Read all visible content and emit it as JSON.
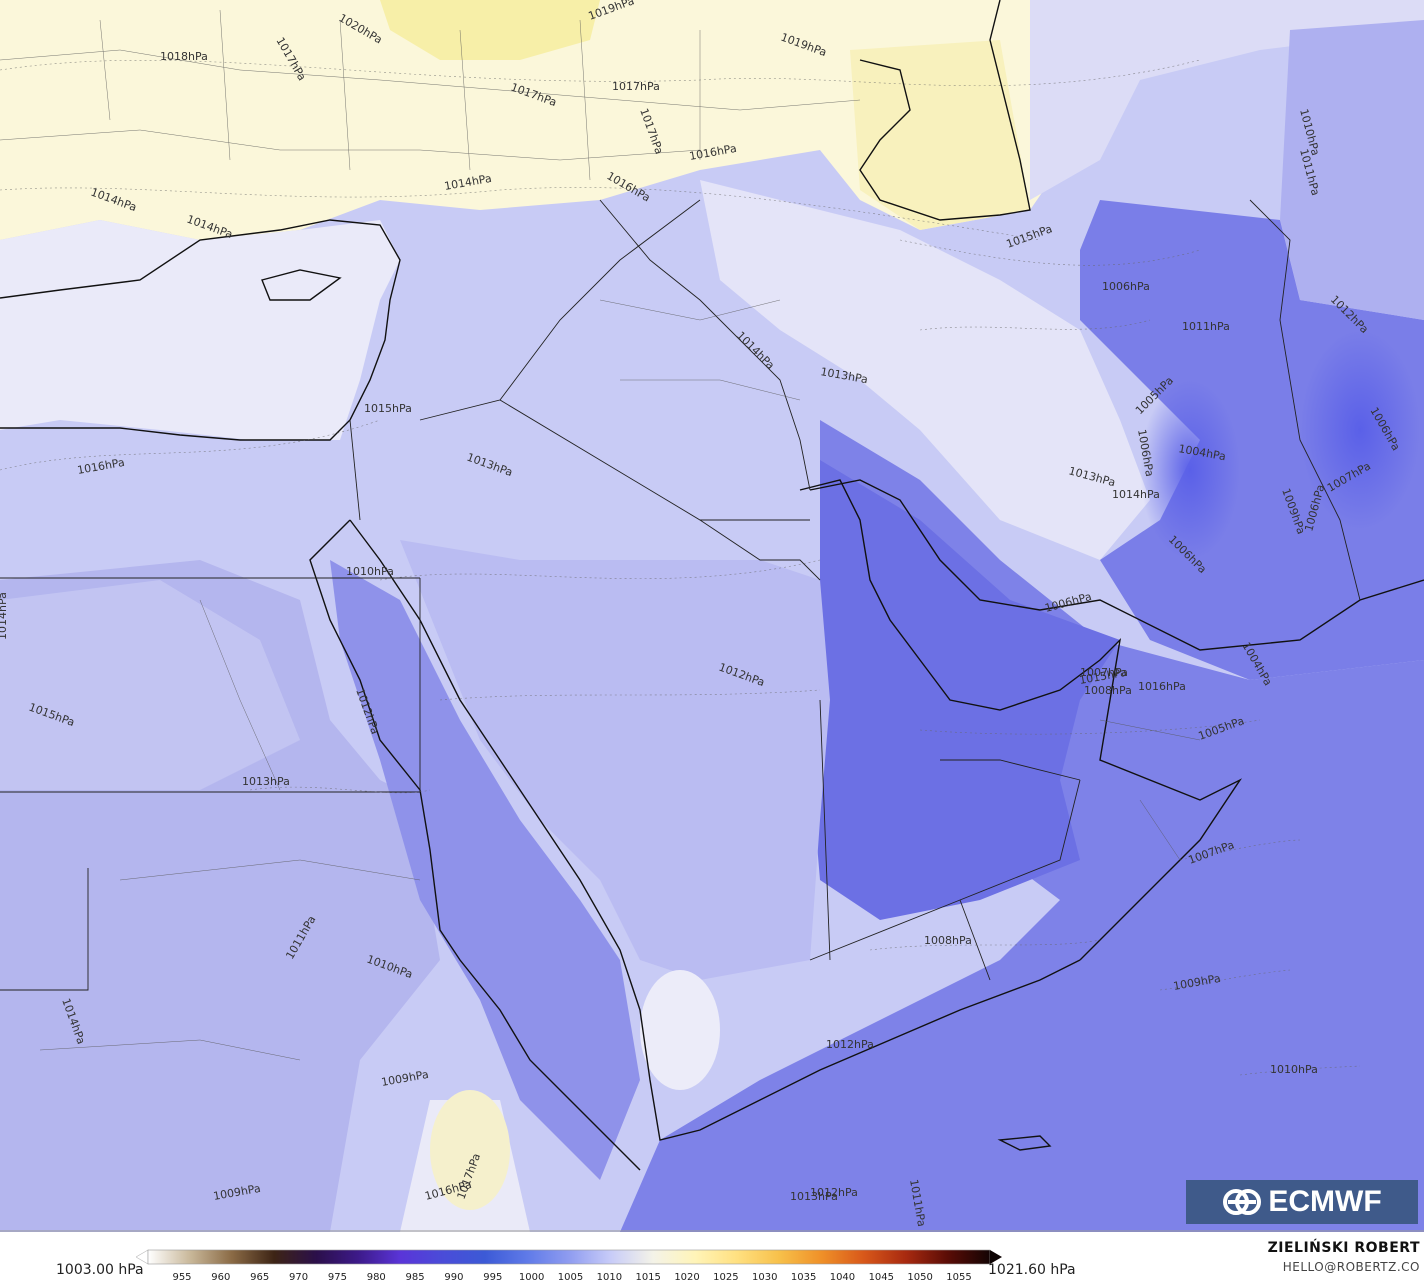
{
  "map": {
    "isobar_labels": [
      {
        "text": "1018hPa"
      },
      {
        "text": "1020hPa"
      },
      {
        "text": "1017hPa"
      },
      {
        "text": "1019hPa"
      },
      {
        "text": "1019hPa"
      },
      {
        "text": "1017hPa"
      },
      {
        "text": "1017hPa"
      },
      {
        "text": "1017hPa"
      },
      {
        "text": "1016hPa"
      },
      {
        "text": "1016hPa"
      },
      {
        "text": "1014hPa"
      },
      {
        "text": "1014hPa"
      },
      {
        "text": "1014hPa"
      },
      {
        "text": "1015hPa"
      },
      {
        "text": "1015hPa"
      },
      {
        "text": "1013hPa"
      },
      {
        "text": "1016hPa"
      },
      {
        "text": "1014hPa"
      },
      {
        "text": "1013hPa"
      },
      {
        "text": "1006hPa"
      },
      {
        "text": "1011hPa"
      },
      {
        "text": "1005hPa"
      },
      {
        "text": "1004hPa"
      },
      {
        "text": "1006hPa"
      },
      {
        "text": "1013hPa"
      },
      {
        "text": "1014hPa"
      },
      {
        "text": "1006hPa"
      },
      {
        "text": "1006hPa"
      },
      {
        "text": "1010hPa"
      },
      {
        "text": "1011hPa"
      },
      {
        "text": "1012hPa"
      },
      {
        "text": "1006hPa"
      },
      {
        "text": "1007hPa"
      },
      {
        "text": "1009hPa"
      },
      {
        "text": "1006hPa"
      },
      {
        "text": "1004hPa"
      },
      {
        "text": "1010hPa"
      },
      {
        "text": "1014hPa"
      },
      {
        "text": "1015hPa"
      },
      {
        "text": "1013hPa"
      },
      {
        "text": "1012hPa"
      },
      {
        "text": "1012hPa"
      },
      {
        "text": "1011hPa"
      },
      {
        "text": "1010hPa"
      },
      {
        "text": "1014hPa"
      },
      {
        "text": "1016hPa"
      },
      {
        "text": "1015hPa"
      },
      {
        "text": "1007hPa"
      },
      {
        "text": "1008hPa"
      },
      {
        "text": "1005hPa"
      },
      {
        "text": "1007hPa"
      },
      {
        "text": "1008hPa"
      },
      {
        "text": "1009hPa"
      },
      {
        "text": "1010hPa"
      },
      {
        "text": "1012hPa"
      },
      {
        "text": "1009hPa"
      },
      {
        "text": "1009hPa"
      },
      {
        "text": "1016hPa"
      },
      {
        "text": "1017hPa"
      },
      {
        "text": "1013hPa"
      },
      {
        "text": "1012hPa"
      },
      {
        "text": "1011hPa"
      }
    ]
  },
  "logo": {
    "text": "ECMWF",
    "icon": "ecmwf-logo-icon"
  },
  "legend": {
    "min": "1003.00 hPa",
    "max": "1021.60 hPa",
    "ticks": [
      "955",
      "960",
      "965",
      "970",
      "975",
      "980",
      "985",
      "990",
      "995",
      "1000",
      "1005",
      "1010",
      "1015",
      "1020",
      "1025",
      "1030",
      "1035",
      "1040",
      "1045",
      "1050",
      "1055"
    ],
    "colors": [
      "#ffffff",
      "#c9b89a",
      "#8a6a45",
      "#3d2415",
      "#2b0f4a",
      "#3d1a8a",
      "#5a35d8",
      "#4a4cd8",
      "#3c5ad6",
      "#5f7ae8",
      "#8f9cf0",
      "#c8ccf8",
      "#f4f3e8",
      "#fff4b8",
      "#ffe080",
      "#f7c04a",
      "#ef9028",
      "#d8581a",
      "#a82a10",
      "#5a0c06",
      "#140404"
    ]
  },
  "author": {
    "name": "ZIELIŃSKI ROBERT",
    "email": "HELLO@ROBERTZ.CO"
  }
}
